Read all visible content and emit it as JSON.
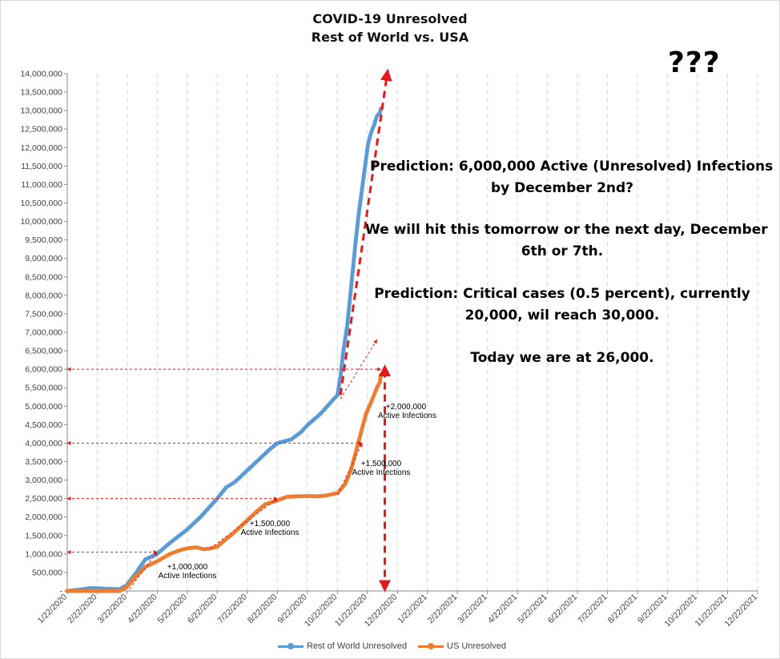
{
  "chart_data": {
    "type": "line",
    "title": "COVID-19 Unresolved",
    "subtitle": "Rest of World vs. USA",
    "xlabel": "",
    "ylabel": "",
    "ylim": [
      0,
      14000000
    ],
    "x_ticks": [
      "1/22/2020",
      "2/22/2020",
      "3/22/2020",
      "4/22/2020",
      "5/22/2020",
      "6/22/2020",
      "7/22/2020",
      "8/22/2020",
      "9/22/2020",
      "10/22/2020",
      "11/22/2020",
      "12/22/2020",
      "1/22/2021",
      "2/22/2021",
      "3/22/2021",
      "4/22/2021",
      "5/22/2021",
      "6/22/2021",
      "7/22/2021",
      "8/22/2021",
      "9/22/2021",
      "10/22/2021",
      "11/22/2021",
      "12/22/2021"
    ],
    "y_ticks": [
      "-",
      "500,000",
      "1,000,000",
      "1,500,000",
      "2,000,000",
      "2,500,000",
      "3,000,000",
      "3,500,000",
      "4,000,000",
      "4,500,000",
      "5,000,000",
      "5,500,000",
      "6,000,000",
      "6,500,000",
      "7,000,000",
      "7,500,000",
      "8,000,000",
      "8,500,000",
      "9,000,000",
      "9,500,000",
      "10,000,000",
      "10,500,000",
      "11,000,000",
      "11,500,000",
      "12,000,000",
      "12,500,000",
      "13,000,000",
      "13,500,000",
      "14,000,000"
    ],
    "grid": "vertical dashed",
    "legend_position": "bottom",
    "series": [
      {
        "name": "Rest of World Unresolved",
        "color": "#5b9bd5",
        "x": [
          "2020-01-22",
          "2020-02-05",
          "2020-02-15",
          "2020-03-01",
          "2020-03-15",
          "2020-03-22",
          "2020-04-01",
          "2020-04-10",
          "2020-04-22",
          "2020-05-05",
          "2020-05-22",
          "2020-06-05",
          "2020-06-22",
          "2020-07-01",
          "2020-07-10",
          "2020-07-22",
          "2020-08-05",
          "2020-08-15",
          "2020-08-22",
          "2020-09-05",
          "2020-09-15",
          "2020-09-22",
          "2020-10-05",
          "2020-10-15",
          "2020-10-22",
          "2020-10-25",
          "2020-10-28",
          "2020-11-01",
          "2020-11-04",
          "2020-11-07",
          "2020-11-10",
          "2020-11-13",
          "2020-11-16",
          "2020-11-19",
          "2020-11-22",
          "2020-11-25",
          "2020-11-28",
          "2020-12-01",
          "2020-12-04",
          "2020-12-05"
        ],
        "y": [
          0,
          40000,
          80000,
          60000,
          50000,
          150000,
          500000,
          850000,
          1000000,
          1300000,
          1650000,
          2000000,
          2500000,
          2800000,
          2950000,
          3250000,
          3600000,
          3850000,
          4000000,
          4100000,
          4300000,
          4500000,
          4800000,
          5100000,
          5300000,
          5800000,
          6500000,
          7200000,
          8000000,
          8800000,
          9600000,
          10300000,
          10900000,
          11500000,
          12100000,
          12400000,
          12600000,
          12850000,
          12950000,
          13050000
        ]
      },
      {
        "name": "US Unresolved",
        "color": "#ed7d31",
        "x": [
          "2020-01-22",
          "2020-02-22",
          "2020-03-15",
          "2020-03-22",
          "2020-04-01",
          "2020-04-10",
          "2020-04-22",
          "2020-05-05",
          "2020-05-15",
          "2020-05-22",
          "2020-06-01",
          "2020-06-08",
          "2020-06-15",
          "2020-06-22",
          "2020-07-01",
          "2020-07-10",
          "2020-07-22",
          "2020-08-01",
          "2020-08-10",
          "2020-08-22",
          "2020-09-01",
          "2020-09-10",
          "2020-09-22",
          "2020-10-01",
          "2020-10-10",
          "2020-10-22",
          "2020-10-30",
          "2020-11-05",
          "2020-11-10",
          "2020-11-15",
          "2020-11-20",
          "2020-11-25",
          "2020-11-28",
          "2020-12-01",
          "2020-12-04",
          "2020-12-05"
        ],
        "y": [
          0,
          0,
          0,
          100000,
          400000,
          650000,
          800000,
          1000000,
          1100000,
          1150000,
          1180000,
          1130000,
          1150000,
          1200000,
          1400000,
          1600000,
          1900000,
          2150000,
          2350000,
          2450000,
          2550000,
          2560000,
          2570000,
          2560000,
          2580000,
          2650000,
          2900000,
          3300000,
          3800000,
          4300000,
          4800000,
          5100000,
          5300000,
          5500000,
          5650000,
          5850000
        ]
      }
    ],
    "annotations": [
      {
        "text": "+1,000,000",
        "sub": "Active Infections"
      },
      {
        "text": "+1,500,000",
        "sub": "Active Infections"
      },
      {
        "text": "+1,500,000",
        "sub": "Active Infections"
      },
      {
        "text": "+2,000,000",
        "sub": "Active Infections"
      }
    ],
    "notes": [
      "Prediction: 6,000,000 Active (Unresolved) Infections",
      "by December 2nd?",
      "We will hit this tomorrow or the next day, December",
      "6th or 7th.",
      "Prediction: Critical cases (0.5 percent), currently",
      "20,000, wil reach 30,000.",
      "Today we are at 26,000."
    ],
    "corner_text": "???"
  }
}
